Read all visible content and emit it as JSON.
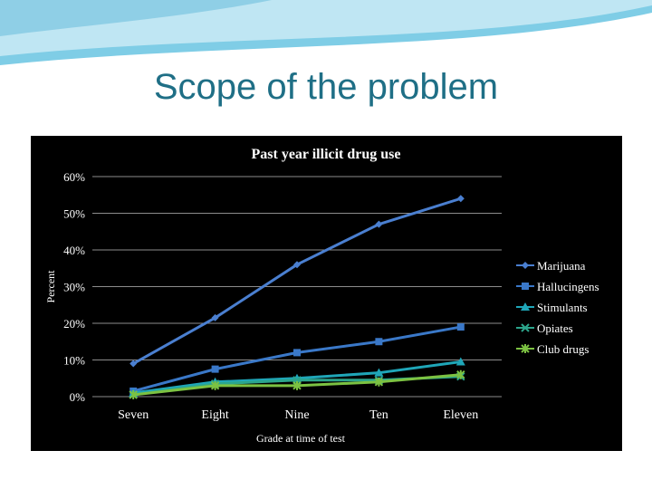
{
  "slide": {
    "title": "Scope of the problem",
    "header_colors": [
      "#bfe6f3",
      "#7fcde6",
      "#5fb8d9"
    ]
  },
  "chart_data": {
    "type": "line",
    "title": "Past year illicit drug use",
    "xlabel": "Grade at time of test",
    "ylabel": "Percent",
    "categories": [
      "Seven",
      "Eight",
      "Nine",
      "Ten",
      "Eleven"
    ],
    "ylim": [
      0,
      60
    ],
    "yticks": [
      0,
      10,
      20,
      30,
      40,
      50,
      60
    ],
    "ytick_labels": [
      "0%",
      "10%",
      "20%",
      "30%",
      "40%",
      "50%",
      "60%"
    ],
    "grid": true,
    "legend_position": "right",
    "series": [
      {
        "name": "Marijuana",
        "values": [
          9,
          21.5,
          36,
          47,
          54
        ],
        "color": "#4a7fd0",
        "marker": "diamond"
      },
      {
        "name": "Hallucingens",
        "values": [
          1.5,
          7.5,
          12,
          15,
          19
        ],
        "color": "#3a78c8",
        "marker": "square"
      },
      {
        "name": "Stimulants",
        "values": [
          1,
          4,
          5,
          6.5,
          9.5
        ],
        "color": "#1fa6b8",
        "marker": "triangle"
      },
      {
        "name": "Opiates",
        "values": [
          0.5,
          3.5,
          4.5,
          4.5,
          5.5
        ],
        "color": "#2ca58c",
        "marker": "x"
      },
      {
        "name": "Club drugs",
        "values": [
          0.5,
          3,
          3,
          4,
          6
        ],
        "color": "#7cc242",
        "marker": "star"
      }
    ]
  }
}
